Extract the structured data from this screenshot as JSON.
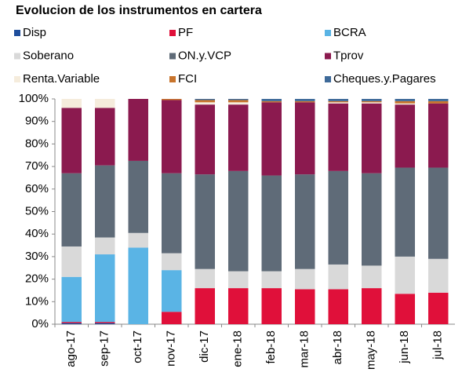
{
  "chart_data": {
    "type": "stacked_bar",
    "title": "Evolucion de los instrumentos en cartera",
    "categories": [
      "ago-17",
      "sep-17",
      "oct-17",
      "nov-17",
      "dic-17",
      "ene-18",
      "feb-18",
      "mar-18",
      "abr-18",
      "may-18",
      "jun-18",
      "jul-18"
    ],
    "series": [
      {
        "name": "Disp",
        "color": "#1f4e9c",
        "values": [
          0.5,
          0.5,
          0,
          0,
          0,
          0,
          0,
          0,
          0,
          0,
          0,
          0
        ]
      },
      {
        "name": "PF",
        "color": "#e0103a",
        "values": [
          0.5,
          0.5,
          0,
          5.5,
          16,
          16,
          16,
          15.5,
          15.5,
          16,
          13.5,
          14
        ]
      },
      {
        "name": "BCRA",
        "color": "#5ab4e5",
        "values": [
          20,
          30,
          34,
          18.5,
          0,
          0,
          0,
          0,
          0,
          0,
          0,
          0
        ]
      },
      {
        "name": "Soberano",
        "color": "#d9d9d9",
        "values": [
          13.5,
          7.5,
          6.5,
          7.5,
          8.5,
          7.5,
          7.5,
          9,
          11,
          10,
          16.5,
          15
        ]
      },
      {
        "name": "ON.y.VCP",
        "color": "#5f6b78",
        "values": [
          32.5,
          32,
          32,
          35.5,
          42,
          44.5,
          42.5,
          42,
          41.5,
          41,
          39.5,
          40.5
        ]
      },
      {
        "name": "Tprov",
        "color": "#8b1a4f",
        "values": [
          29,
          25.5,
          27.5,
          32.5,
          31,
          29.5,
          32.5,
          32,
          30,
          31,
          28,
          28.5
        ]
      },
      {
        "name": "Renta.Variable",
        "color": "#f5ecdc",
        "values": [
          4,
          4,
          0,
          0,
          1,
          1,
          0,
          0,
          0.5,
          0.5,
          0.5,
          0
        ]
      },
      {
        "name": "FCI",
        "color": "#c8742c",
        "values": [
          0,
          0,
          0,
          0.5,
          1,
          1,
          0.5,
          0.5,
          0.5,
          0.5,
          1,
          1
        ]
      },
      {
        "name": "Cheques.y.Pagares",
        "color": "#3e6a99",
        "values": [
          0,
          0,
          0,
          0,
          0.5,
          0.5,
          1,
          1,
          1,
          1,
          1,
          1
        ]
      }
    ],
    "ylim": [
      0,
      100
    ],
    "yticks": [
      {
        "value": 0,
        "label": "0%"
      },
      {
        "value": 10,
        "label": "10%"
      },
      {
        "value": 20,
        "label": "20%"
      },
      {
        "value": 30,
        "label": "30%"
      },
      {
        "value": 40,
        "label": "40%"
      },
      {
        "value": 50,
        "label": "50%"
      },
      {
        "value": 60,
        "label": "60%"
      },
      {
        "value": 70,
        "label": "70%"
      },
      {
        "value": 80,
        "label": "80%"
      },
      {
        "value": 90,
        "label": "90%"
      },
      {
        "value": 100,
        "label": "100%"
      }
    ],
    "legend": "top"
  }
}
